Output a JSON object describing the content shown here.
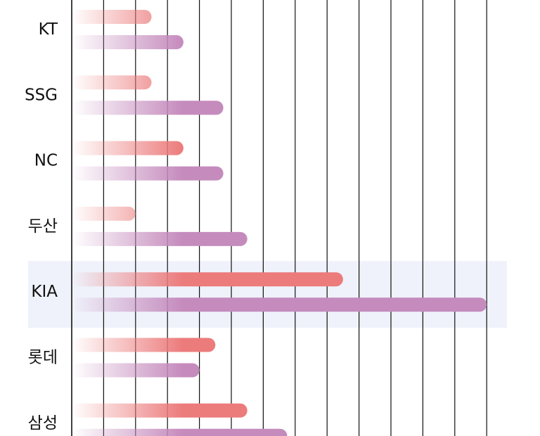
{
  "chart_data": {
    "type": "bar",
    "orientation": "horizontal",
    "categories": [
      "KT",
      "SSG",
      "NC",
      "두산",
      "KIA",
      "롯데",
      "삼성"
    ],
    "highlighted_category": "KIA",
    "series": [
      {
        "values": [
          2.5,
          2.5,
          3.5,
          2.0,
          8.5,
          4.5,
          5.5
        ],
        "color": "#ec7b7c"
      },
      {
        "values": [
          3.5,
          4.75,
          4.75,
          5.5,
          13.0,
          4.0,
          6.75
        ],
        "color": "#c58bbd"
      }
    ],
    "xlim": [
      0,
      13.7
    ],
    "grid": true,
    "highlight_color": "#eff2fb",
    "axis_color": "#111111"
  }
}
